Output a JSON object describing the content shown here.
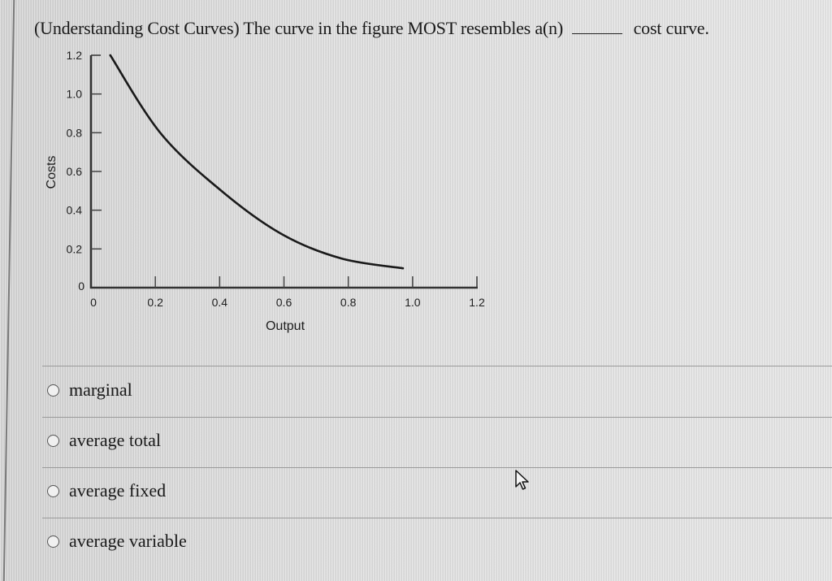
{
  "question": {
    "prefix": "(Understanding Cost Curves) The curve in the figure MOST resembles a(n)",
    "suffix": "cost curve."
  },
  "chart_data": {
    "type": "line",
    "title": "",
    "xlabel": "Output",
    "ylabel": "Costs",
    "xlim": [
      0,
      1.2
    ],
    "ylim": [
      0,
      1.2
    ],
    "x_ticks": [
      "0",
      "0.2",
      "0.4",
      "0.6",
      "0.8",
      "1.0",
      "1.2"
    ],
    "y_ticks": [
      "0",
      "0.2",
      "0.4",
      "0.6",
      "0.8",
      "1.0",
      "1.2"
    ],
    "grid": false,
    "legend": null,
    "series": [
      {
        "name": "cost curve",
        "x": [
          0.06,
          0.22,
          0.42,
          0.6,
          0.78,
          0.97
        ],
        "y": [
          1.2,
          0.79,
          0.48,
          0.27,
          0.15,
          0.1
        ]
      }
    ]
  },
  "options": [
    {
      "label": "marginal",
      "selected": false
    },
    {
      "label": "average total",
      "selected": false
    },
    {
      "label": "average fixed",
      "selected": false
    },
    {
      "label": "average variable",
      "selected": false
    }
  ],
  "icons": {
    "radio": "radio-empty-icon",
    "cursor": "mouse-pointer-icon"
  }
}
